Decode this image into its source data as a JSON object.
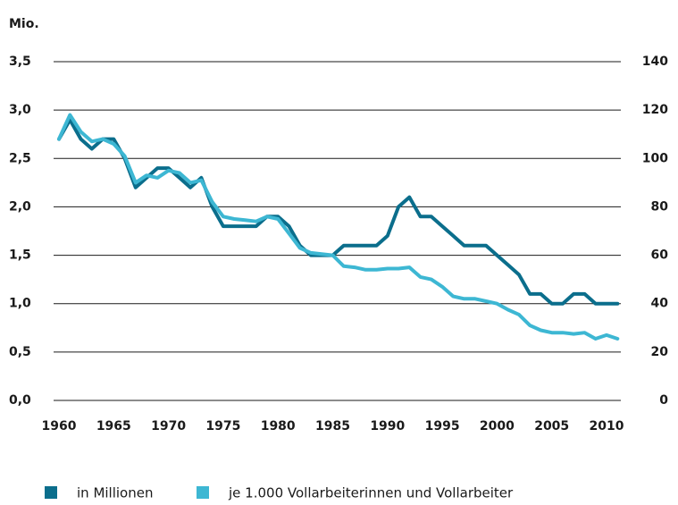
{
  "chart_data": {
    "type": "line",
    "y_label": "Mio.",
    "x": [
      1960,
      1961,
      1962,
      1963,
      1964,
      1965,
      1966,
      1967,
      1968,
      1969,
      1970,
      1971,
      1972,
      1973,
      1974,
      1975,
      1976,
      1977,
      1978,
      1979,
      1980,
      1981,
      1982,
      1983,
      1984,
      1985,
      1986,
      1987,
      1988,
      1989,
      1990,
      1991,
      1992,
      1993,
      1994,
      1995,
      1996,
      1997,
      1998,
      1999,
      2000,
      2001,
      2002,
      2003,
      2004,
      2005,
      2006,
      2007,
      2008,
      2009,
      2010,
      2011
    ],
    "series": [
      {
        "name": "in Millionen",
        "color": "#0b6e8c",
        "values": [
          2.7,
          2.9,
          2.7,
          2.6,
          2.7,
          2.7,
          2.5,
          2.2,
          2.3,
          2.4,
          2.4,
          2.3,
          2.2,
          2.3,
          2.0,
          1.8,
          1.8,
          1.8,
          1.8,
          1.9,
          1.9,
          1.8,
          1.6,
          1.5,
          1.5,
          1.5,
          1.6,
          1.6,
          1.6,
          1.6,
          1.7,
          2.0,
          2.1,
          1.9,
          1.9,
          1.8,
          1.7,
          1.6,
          1.6,
          1.6,
          1.5,
          1.4,
          1.3,
          1.1,
          1.1,
          1.0,
          1.0,
          1.1,
          1.1,
          1.0,
          1.0,
          1.0
        ]
      },
      {
        "name": "je 1.000 Vollarbeiterinnen und Vollarbeiter",
        "color": "#3db7d3",
        "axis": "y2",
        "values": [
          108,
          118,
          111,
          107,
          108,
          106,
          101,
          90,
          93,
          92,
          95,
          94,
          90,
          91,
          82,
          76,
          75,
          74.5,
          74,
          76,
          75,
          69,
          63,
          61,
          60.5,
          60,
          55.5,
          55,
          54,
          54,
          54.5,
          54.5,
          55,
          51,
          50,
          47,
          43,
          42,
          42,
          41,
          40,
          37.5,
          35.5,
          31,
          29,
          28,
          28,
          27.5,
          28,
          25.5,
          27,
          25.5
        ]
      }
    ],
    "xlim": [
      1960,
      2011
    ],
    "xticks": [
      1960,
      1965,
      1970,
      1975,
      1980,
      1985,
      1990,
      1995,
      2000,
      2005,
      2010
    ],
    "ylim": [
      0,
      3.5
    ],
    "yticks": [
      {
        "value": 0,
        "label": "0,0"
      },
      {
        "value": 0.5,
        "label": "0,5"
      },
      {
        "value": 1,
        "label": "1,0"
      },
      {
        "value": 1.5,
        "label": "1,5"
      },
      {
        "value": 2,
        "label": "2,0"
      },
      {
        "value": 2.5,
        "label": "2,5"
      },
      {
        "value": 3,
        "label": "3,0"
      },
      {
        "value": 3.5,
        "label": "3,5"
      }
    ],
    "y2lim": [
      0,
      140
    ],
    "y2ticks": [
      0,
      20,
      40,
      60,
      80,
      100,
      120,
      140
    ],
    "grid": true
  }
}
